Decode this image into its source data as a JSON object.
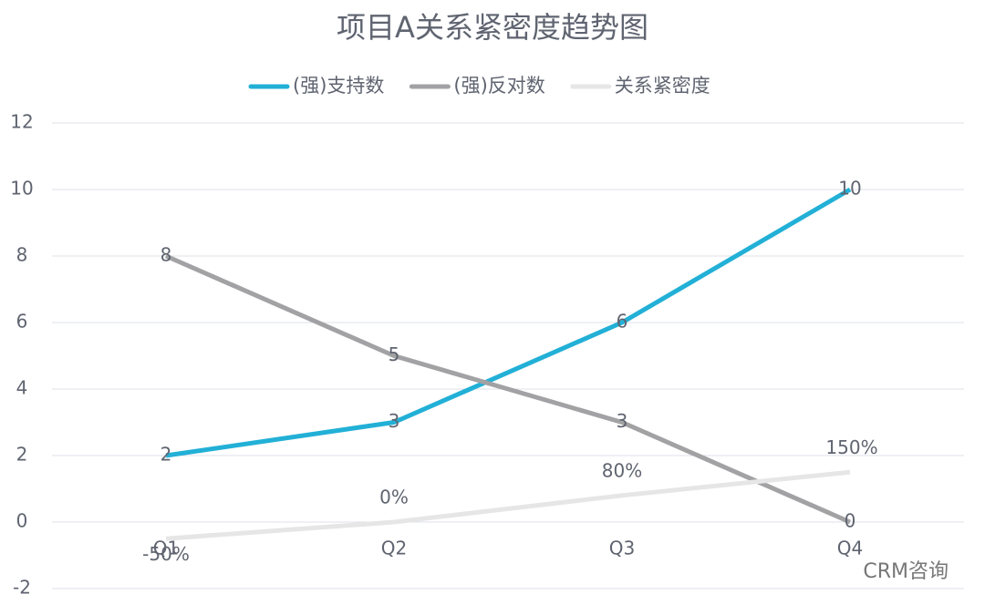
{
  "chart_data": {
    "type": "line",
    "title": "项目A关系紧密度趋势图",
    "categories": [
      "Q1",
      "Q2",
      "Q3",
      "Q4"
    ],
    "series": [
      {
        "name": "(强)支持数",
        "color": "#22b0d6",
        "values": [
          2,
          3,
          6,
          10
        ]
      },
      {
        "name": "(强)反对数",
        "color": "#a2a2a4",
        "values": [
          8,
          5,
          3,
          0
        ]
      },
      {
        "name": "关系紧密度",
        "color": "#e6e6e6",
        "values": [
          -0.5,
          0,
          0.8,
          1.5
        ],
        "value_labels": [
          "-50%",
          "0%",
          "80%",
          "150%"
        ]
      }
    ],
    "ylim": [
      -2,
      12
    ],
    "yticks": [
      -2,
      0,
      2,
      4,
      6,
      8,
      10,
      12
    ],
    "grid": true,
    "legend": "top",
    "watermark": "CRM咨询"
  }
}
